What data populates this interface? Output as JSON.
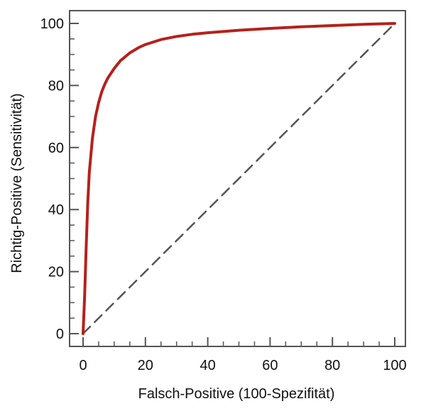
{
  "chart_data": {
    "type": "line",
    "title": "",
    "xlabel": "Falsch-Positive (100-Spezifität)",
    "ylabel": "Richtig-Positive (Sensitivität)",
    "xlim": [
      0,
      100
    ],
    "ylim": [
      0,
      100
    ],
    "x_ticks": [
      0,
      20,
      40,
      60,
      80,
      100
    ],
    "y_ticks": [
      0,
      20,
      40,
      60,
      80,
      100
    ],
    "x_tick_labels": [
      "0",
      "20",
      "40",
      "60",
      "80",
      "100"
    ],
    "y_tick_labels": [
      "0",
      "20",
      "40",
      "60",
      "80",
      "100"
    ],
    "minor_tick_step": 5,
    "grid": false,
    "series": [
      {
        "color": "#b5211b",
        "style": "solid",
        "x": [
          0,
          0.5,
          1,
          1.5,
          2,
          3,
          4,
          5,
          6,
          7,
          8,
          10,
          12,
          15,
          18,
          20,
          25,
          30,
          35,
          40,
          50,
          60,
          70,
          80,
          90,
          100
        ],
        "y": [
          0,
          12,
          28,
          42,
          52,
          63,
          70,
          74.5,
          78,
          80.5,
          82.5,
          85.5,
          88,
          90.5,
          92.3,
          93.2,
          94.8,
          95.8,
          96.5,
          97,
          97.8,
          98.4,
          98.9,
          99.3,
          99.7,
          100
        ]
      },
      {
        "color": "#555555",
        "style": "dashed",
        "x": [
          0,
          100
        ],
        "y": [
          0,
          100
        ]
      }
    ]
  }
}
